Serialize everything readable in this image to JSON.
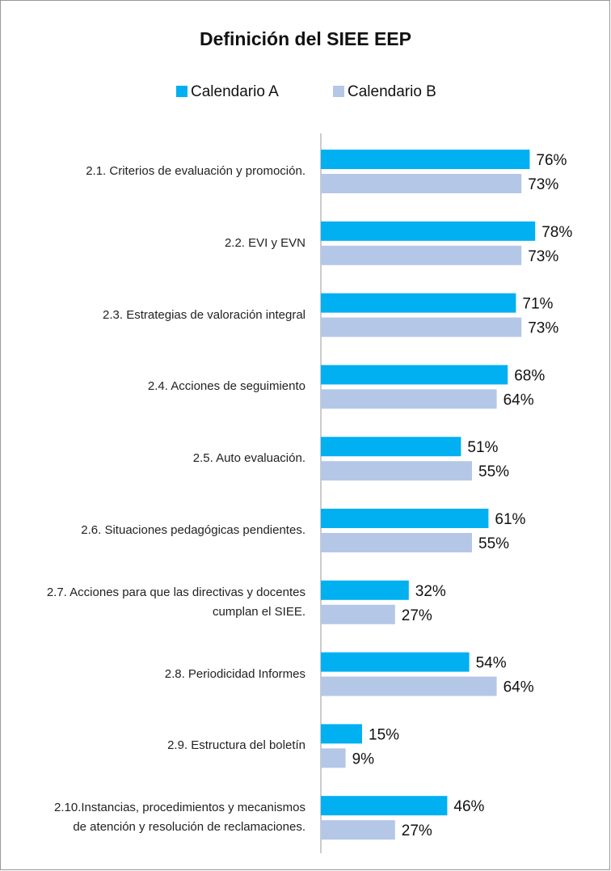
{
  "chart_data": {
    "type": "hbar",
    "title": "Definición del SIEE EEP",
    "categories": [
      "2.1. Criterios de evaluación y promoción.",
      "2.2. EVI y EVN",
      "2.3. Estrategias de valoración integral",
      "2.4. Acciones de seguimiento",
      "2.5. Auto evaluación.",
      "2.6. Situaciones pedagógicas pendientes.",
      "2.7. Acciones para que las directivas y docentes cumplan el SIEE.",
      "2.8. Periodicidad Informes",
      "2.9. Estructura del boletín",
      "2.10.Instancias, procedimientos y mecanismos de atención y resolución de reclamaciones."
    ],
    "series": [
      {
        "name": "Calendario A",
        "color": "#00b0f0",
        "values": [
          76,
          78,
          71,
          68,
          51,
          61,
          32,
          54,
          15,
          46
        ],
        "value_labels": [
          "76%",
          "78%",
          "71%",
          "68%",
          "51%",
          "61%",
          "32%",
          "54%",
          "15%",
          "46%"
        ]
      },
      {
        "name": "Calendario B",
        "color": "#b4c7e7",
        "values": [
          73,
          73,
          73,
          64,
          55,
          55,
          27,
          64,
          9,
          27
        ],
        "value_labels": [
          "73%",
          "73%",
          "73%",
          "64%",
          "55%",
          "55%",
          "27%",
          "64%",
          "9%",
          "27%"
        ]
      }
    ],
    "xlim": [
      0,
      100
    ]
  }
}
